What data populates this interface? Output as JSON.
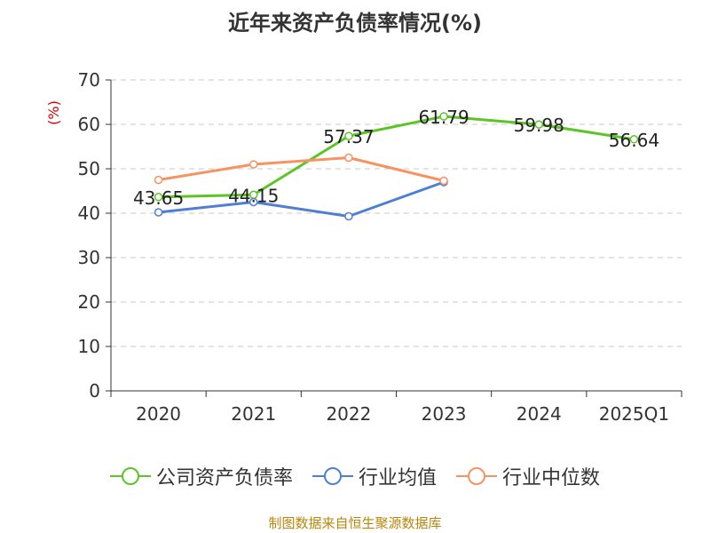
{
  "title": "近年来资产负债率情况(%)",
  "source": "制图数据来自恒生聚源数据库",
  "chart_data": {
    "type": "line",
    "title": "近年来资产负债率情况(%)",
    "ylabel": "(%)",
    "ylim": [
      0,
      70
    ],
    "yticks": [
      0,
      10,
      20,
      30,
      40,
      50,
      60,
      70
    ],
    "grid": true,
    "legend_position": "bottom",
    "categories": [
      "2020",
      "2021",
      "2022",
      "2023",
      "2024",
      "2025Q1"
    ],
    "series": [
      {
        "name": "公司资产负债率",
        "color": "#5cc425",
        "values": [
          43.65,
          44.15,
          57.37,
          61.79,
          59.98,
          56.64
        ],
        "labels": [
          "43.65",
          "44.15",
          "57.37",
          "61.79",
          "59.98",
          "56.64"
        ]
      },
      {
        "name": "行业均值",
        "color": "#4f7fd4",
        "values": [
          40.2,
          42.5,
          39.3,
          47.0,
          null,
          null
        ]
      },
      {
        "name": "行业中位数",
        "color": "#f59362",
        "values": [
          47.5,
          51.0,
          52.5,
          47.3,
          null,
          null
        ]
      }
    ]
  }
}
